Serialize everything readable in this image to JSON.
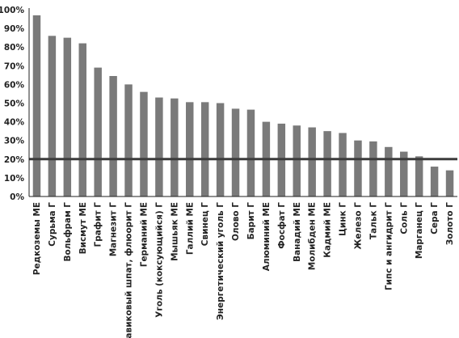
{
  "chart_data": {
    "type": "bar",
    "title": "",
    "xlabel": "",
    "ylabel": "",
    "ylim": [
      0,
      100
    ],
    "y_ticks": [
      0,
      10,
      20,
      30,
      40,
      50,
      60,
      70,
      80,
      90,
      100
    ],
    "y_tick_labels": [
      "0%",
      "10%",
      "20%",
      "30%",
      "40%",
      "50%",
      "60%",
      "70%",
      "80%",
      "90%",
      "100%"
    ],
    "grid": false,
    "legend": "none",
    "reference_line": {
      "value": 20
    },
    "categories": [
      "Редкоземы МЕ",
      "Сурьма Г",
      "Вольфрам Г",
      "Висмут МЕ",
      "Графит Г",
      "Магнезит Г",
      "Плавиковый шпат, флюорит Г",
      "Германий МЕ",
      "Уголь (коксующийся) Г",
      "Мышьяк МЕ",
      "Галлий МЕ",
      "Свинец Г",
      "Энергетический уголь Г",
      "Олово Г",
      "Барит Г",
      "Алюминий МЕ",
      "Фосфат Г",
      "Ванадий МЕ",
      "Молибден МЕ",
      "Кадмий МЕ",
      "Цинк Г",
      "Железо Г",
      "Тальк Г",
      "Гипс и ангидрит Г",
      "Соль Г",
      "Марганец Г",
      "Сера Г",
      "Золото Г"
    ],
    "values": [
      97,
      86,
      85,
      82,
      69,
      64.5,
      60,
      56,
      53,
      52.5,
      50.5,
      50.5,
      50,
      47,
      46.5,
      40,
      39,
      38,
      37,
      35,
      34,
      30,
      29.5,
      26.5,
      24,
      21.5,
      16,
      14
    ],
    "colors": {
      "bar": "#7a7a7a",
      "axis": "#222222",
      "reference_line": "#3c3c3c"
    }
  }
}
